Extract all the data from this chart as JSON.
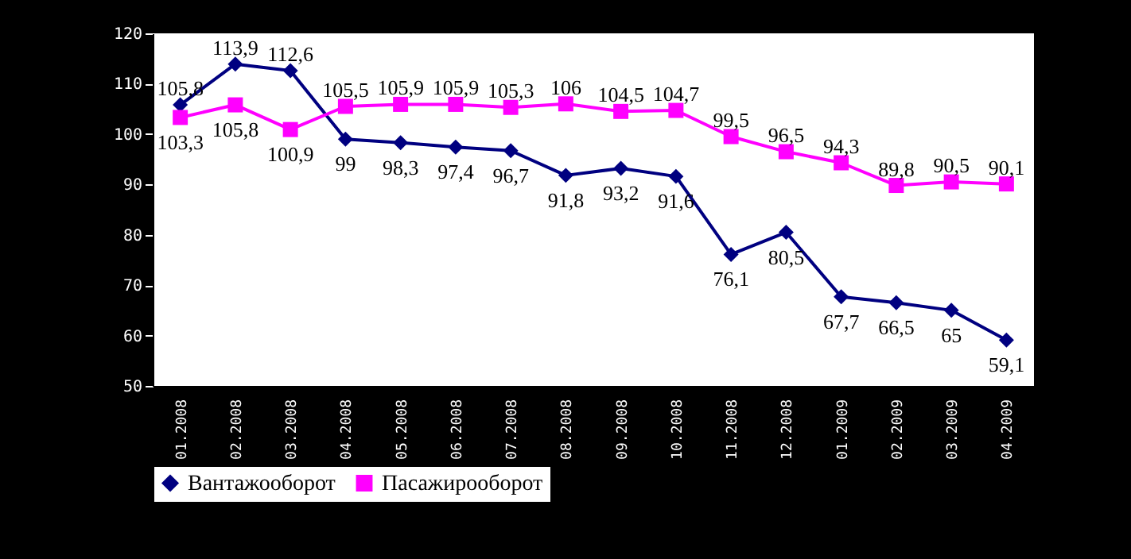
{
  "chart_data": {
    "type": "line",
    "categories": [
      "01.2008",
      "02.2008",
      "03.2008",
      "04.2008",
      "05.2008",
      "06.2008",
      "07.2008",
      "08.2008",
      "09.2008",
      "10.2008",
      "11.2008",
      "12.2008",
      "01.2009",
      "02.2009",
      "03.2009",
      "04.2009"
    ],
    "series": [
      {
        "name": "Вантажооборот",
        "color": "#000080",
        "marker": "diamond",
        "values": [
          105.8,
          113.9,
          112.6,
          99,
          98.3,
          97.4,
          96.7,
          91.8,
          93.2,
          91.6,
          76.1,
          80.5,
          67.7,
          66.5,
          65,
          59.1
        ],
        "value_labels": [
          "105,8",
          "113,9",
          "112,6",
          "99",
          "98,3",
          "97,4",
          "96,7",
          "91,8",
          "93,2",
          "91,6",
          "76,1",
          "80,5",
          "67,7",
          "66,5",
          "65",
          "59,1"
        ]
      },
      {
        "name": "Пасажирооборот",
        "color": "#ff00ff",
        "marker": "square",
        "values": [
          103.3,
          105.8,
          100.9,
          105.5,
          105.9,
          105.9,
          105.3,
          106,
          104.5,
          104.7,
          99.5,
          96.5,
          94.3,
          89.8,
          90.5,
          90.1
        ],
        "value_labels": [
          "103,3",
          "105,8",
          "100,9",
          "105,5",
          "105,9",
          "105,9",
          "105,3",
          "106",
          "104,5",
          "104,7",
          "99,5",
          "96,5",
          "94,3",
          "89,8",
          "90,5",
          "90,1"
        ]
      }
    ],
    "ylim": [
      50,
      120
    ],
    "yticks": [
      50,
      60,
      70,
      80,
      90,
      100,
      110,
      120
    ],
    "grid": false,
    "legend": "bottom"
  }
}
